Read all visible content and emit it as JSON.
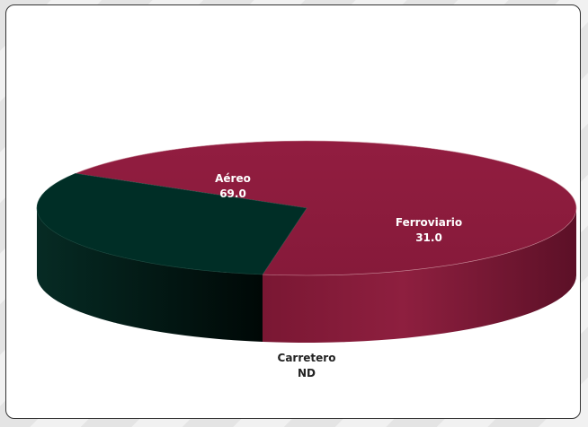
{
  "chart_data": {
    "type": "pie",
    "style": "3d",
    "slices": [
      {
        "label": "Aéreo",
        "value": 69.0,
        "display": "69.0",
        "color": "#8b1c3c"
      },
      {
        "label": "Ferroviario",
        "value": 31.0,
        "display": "31.0",
        "color": "#002e26"
      },
      {
        "label": "Carretero",
        "value": null,
        "display": "ND",
        "color": "#8b1c3c"
      }
    ],
    "legend": "none"
  }
}
